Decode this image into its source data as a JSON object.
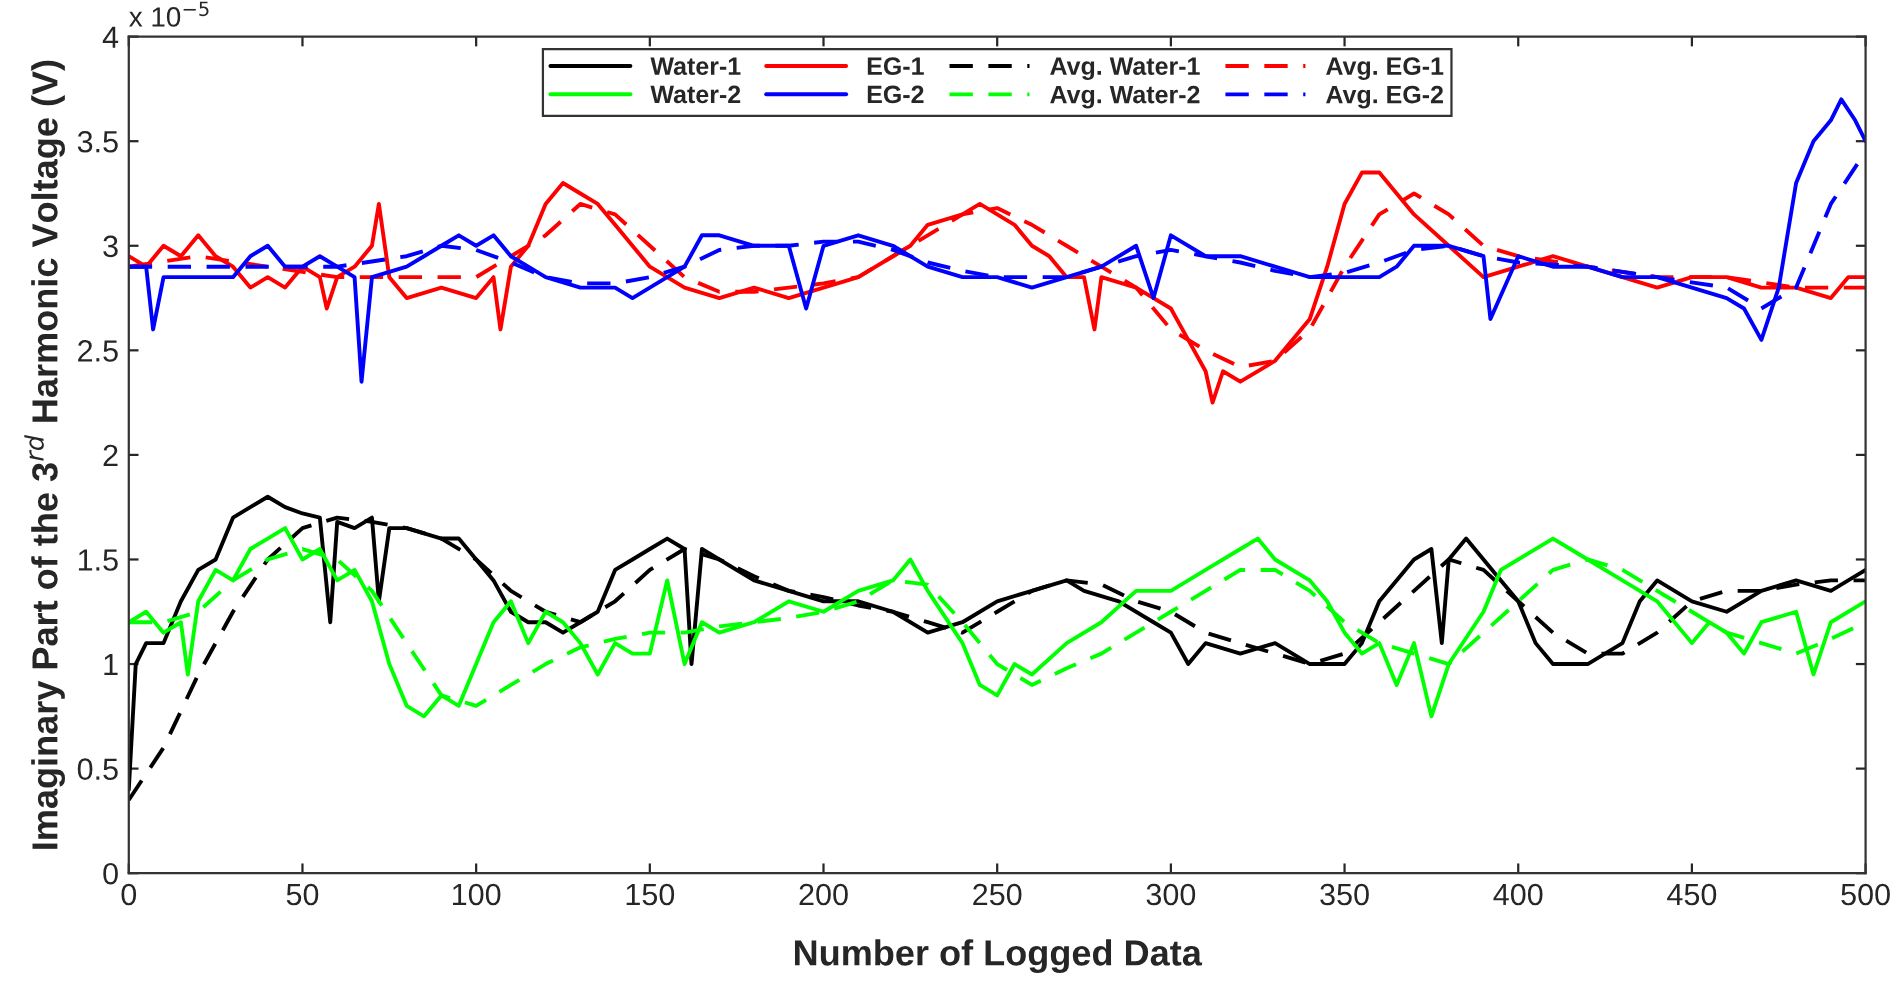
{
  "chart_data": {
    "type": "line",
    "xlabel": "Number of Logged Data",
    "ylabel": "Imaginary Part of the 3$^{rd}$ Harmonic Voltage (V)",
    "annotations": [
      "x 10$^{−5}$"
    ],
    "xlim": [
      0,
      500
    ],
    "xticks": [
      0,
      50,
      100,
      150,
      200,
      250,
      300,
      350,
      400,
      450,
      500
    ],
    "ylim": [
      0,
      4
    ],
    "yticks": [
      0,
      0.5,
      1,
      1.5,
      2,
      2.5,
      3,
      3.5,
      4
    ],
    "grid": false,
    "legend": "top",
    "marker": "none",
    "series": [
      {
        "name": "Water-1",
        "color": "#000000",
        "line_style": "solid",
        "x": [
          0,
          2,
          5,
          10,
          15,
          20,
          25,
          30,
          35,
          40,
          45,
          50,
          55,
          58,
          60,
          65,
          70,
          72,
          75,
          80,
          90,
          95,
          100,
          105,
          110,
          115,
          120,
          125,
          130,
          135,
          140,
          145,
          150,
          155,
          160,
          162,
          165,
          170,
          180,
          190,
          200,
          210,
          220,
          230,
          240,
          250,
          260,
          270,
          275,
          285,
          295,
          300,
          305,
          310,
          320,
          330,
          340,
          350,
          355,
          360,
          370,
          375,
          378,
          380,
          385,
          390,
          395,
          400,
          405,
          410,
          420,
          425,
          430,
          435,
          440,
          445,
          450,
          460,
          470,
          480,
          490,
          495,
          500
        ],
        "values": [
          0.4,
          1.0,
          1.1,
          1.1,
          1.3,
          1.45,
          1.5,
          1.7,
          1.75,
          1.8,
          1.75,
          1.72,
          1.7,
          1.2,
          1.68,
          1.65,
          1.7,
          1.3,
          1.65,
          1.65,
          1.6,
          1.6,
          1.5,
          1.4,
          1.25,
          1.2,
          1.2,
          1.15,
          1.2,
          1.25,
          1.45,
          1.5,
          1.55,
          1.6,
          1.55,
          1.0,
          1.55,
          1.5,
          1.4,
          1.35,
          1.3,
          1.3,
          1.25,
          1.15,
          1.2,
          1.3,
          1.35,
          1.4,
          1.35,
          1.3,
          1.2,
          1.15,
          1.0,
          1.1,
          1.05,
          1.1,
          1.0,
          1.0,
          1.1,
          1.3,
          1.5,
          1.55,
          1.1,
          1.5,
          1.6,
          1.5,
          1.4,
          1.3,
          1.1,
          1.0,
          1.0,
          1.05,
          1.1,
          1.3,
          1.4,
          1.35,
          1.3,
          1.25,
          1.35,
          1.4,
          1.35,
          1.4,
          1.45
        ]
      },
      {
        "name": "EG-1",
        "color": "#ff0000",
        "line_style": "solid",
        "x": [
          0,
          5,
          10,
          15,
          20,
          25,
          30,
          35,
          40,
          45,
          50,
          55,
          57,
          60,
          65,
          70,
          72,
          75,
          80,
          90,
          100,
          105,
          107,
          110,
          115,
          120,
          125,
          130,
          135,
          140,
          145,
          150,
          155,
          160,
          170,
          180,
          190,
          200,
          210,
          220,
          225,
          230,
          240,
          245,
          250,
          255,
          260,
          265,
          270,
          275,
          278,
          280,
          290,
          300,
          305,
          310,
          312,
          315,
          320,
          330,
          340,
          345,
          350,
          355,
          360,
          365,
          370,
          380,
          390,
          400,
          410,
          420,
          430,
          440,
          450,
          460,
          470,
          480,
          490,
          495,
          500
        ],
        "values": [
          2.95,
          2.9,
          3.0,
          2.95,
          3.05,
          2.95,
          2.9,
          2.8,
          2.85,
          2.8,
          2.9,
          2.85,
          2.7,
          2.85,
          2.9,
          3.0,
          3.2,
          2.85,
          2.75,
          2.8,
          2.75,
          2.85,
          2.6,
          2.9,
          3.0,
          3.2,
          3.3,
          3.25,
          3.2,
          3.1,
          3.0,
          2.9,
          2.85,
          2.8,
          2.75,
          2.8,
          2.75,
          2.8,
          2.85,
          2.95,
          3.0,
          3.1,
          3.15,
          3.2,
          3.15,
          3.1,
          3.0,
          2.95,
          2.85,
          2.85,
          2.6,
          2.85,
          2.8,
          2.7,
          2.55,
          2.4,
          2.25,
          2.4,
          2.35,
          2.45,
          2.65,
          2.9,
          3.2,
          3.35,
          3.35,
          3.25,
          3.15,
          3.0,
          2.85,
          2.9,
          2.95,
          2.9,
          2.85,
          2.8,
          2.85,
          2.85,
          2.8,
          2.8,
          2.75,
          2.85,
          2.85
        ]
      },
      {
        "name": "Avg. Water-1",
        "color": "#000000",
        "line_style": "dashed",
        "x": [
          0,
          10,
          20,
          30,
          40,
          50,
          60,
          70,
          80,
          90,
          100,
          110,
          120,
          130,
          140,
          150,
          160,
          170,
          180,
          190,
          200,
          210,
          220,
          230,
          240,
          250,
          260,
          270,
          280,
          290,
          300,
          310,
          320,
          330,
          340,
          350,
          360,
          370,
          380,
          390,
          400,
          410,
          420,
          430,
          440,
          450,
          460,
          470,
          480,
          490,
          500
        ],
        "values": [
          0.35,
          0.6,
          0.95,
          1.25,
          1.5,
          1.65,
          1.7,
          1.68,
          1.65,
          1.6,
          1.5,
          1.35,
          1.25,
          1.2,
          1.3,
          1.45,
          1.55,
          1.5,
          1.42,
          1.35,
          1.32,
          1.28,
          1.25,
          1.2,
          1.15,
          1.25,
          1.35,
          1.4,
          1.38,
          1.3,
          1.25,
          1.15,
          1.1,
          1.05,
          1.0,
          1.05,
          1.2,
          1.35,
          1.5,
          1.45,
          1.3,
          1.15,
          1.05,
          1.05,
          1.15,
          1.3,
          1.35,
          1.35,
          1.38,
          1.4,
          1.4
        ]
      },
      {
        "name": "Avg. EG-1",
        "color": "#ff0000",
        "line_style": "dashed",
        "x": [
          0,
          20,
          40,
          60,
          80,
          100,
          110,
          120,
          130,
          140,
          150,
          160,
          170,
          180,
          190,
          200,
          210,
          220,
          230,
          240,
          250,
          260,
          270,
          280,
          290,
          300,
          310,
          320,
          330,
          340,
          350,
          360,
          370,
          380,
          390,
          400,
          420,
          440,
          460,
          480,
          500
        ],
        "values": [
          2.9,
          2.95,
          2.9,
          2.85,
          2.85,
          2.85,
          2.95,
          3.05,
          3.2,
          3.15,
          3.0,
          2.85,
          2.78,
          2.78,
          2.8,
          2.82,
          2.85,
          2.95,
          3.05,
          3.15,
          3.18,
          3.1,
          3.0,
          2.9,
          2.8,
          2.6,
          2.5,
          2.42,
          2.45,
          2.6,
          2.9,
          3.15,
          3.25,
          3.15,
          3.0,
          2.95,
          2.9,
          2.85,
          2.85,
          2.8,
          2.8
        ]
      },
      {
        "name": "Water-2",
        "color": "#00ff00",
        "line_style": "solid",
        "x": [
          0,
          5,
          10,
          15,
          17,
          20,
          25,
          30,
          35,
          40,
          45,
          50,
          55,
          60,
          65,
          70,
          75,
          80,
          85,
          90,
          95,
          100,
          105,
          110,
          115,
          120,
          125,
          130,
          135,
          140,
          145,
          150,
          155,
          160,
          165,
          170,
          180,
          190,
          200,
          210,
          220,
          225,
          230,
          240,
          245,
          250,
          255,
          260,
          270,
          280,
          290,
          300,
          310,
          320,
          325,
          330,
          340,
          345,
          350,
          355,
          360,
          365,
          370,
          375,
          380,
          390,
          395,
          400,
          410,
          415,
          420,
          430,
          440,
          450,
          455,
          460,
          465,
          470,
          480,
          485,
          490,
          500
        ],
        "values": [
          1.2,
          1.25,
          1.15,
          1.2,
          0.95,
          1.3,
          1.45,
          1.4,
          1.55,
          1.6,
          1.65,
          1.5,
          1.55,
          1.4,
          1.45,
          1.3,
          1.0,
          0.8,
          0.75,
          0.85,
          0.8,
          1.0,
          1.2,
          1.3,
          1.1,
          1.25,
          1.2,
          1.1,
          0.95,
          1.1,
          1.05,
          1.05,
          1.4,
          1.0,
          1.2,
          1.15,
          1.2,
          1.3,
          1.25,
          1.35,
          1.4,
          1.5,
          1.35,
          1.1,
          0.9,
          0.85,
          1.0,
          0.95,
          1.1,
          1.2,
          1.35,
          1.35,
          1.45,
          1.55,
          1.6,
          1.5,
          1.4,
          1.3,
          1.15,
          1.05,
          1.1,
          0.9,
          1.1,
          0.75,
          1.0,
          1.25,
          1.45,
          1.5,
          1.6,
          1.55,
          1.5,
          1.4,
          1.3,
          1.1,
          1.2,
          1.15,
          1.05,
          1.2,
          1.25,
          0.95,
          1.2,
          1.3
        ]
      },
      {
        "name": "EG-2",
        "color": "#0000ff",
        "line_style": "solid",
        "x": [
          0,
          5,
          7,
          10,
          20,
          30,
          35,
          40,
          45,
          50,
          55,
          60,
          65,
          67,
          70,
          80,
          85,
          90,
          95,
          100,
          105,
          110,
          115,
          120,
          130,
          140,
          145,
          150,
          160,
          165,
          170,
          180,
          190,
          195,
          200,
          210,
          220,
          230,
          240,
          250,
          260,
          270,
          280,
          290,
          295,
          300,
          310,
          320,
          330,
          340,
          350,
          360,
          365,
          370,
          380,
          390,
          392,
          400,
          410,
          420,
          430,
          440,
          450,
          460,
          465,
          470,
          475,
          480,
          485,
          490,
          493,
          497,
          500
        ],
        "values": [
          2.9,
          2.9,
          2.6,
          2.85,
          2.85,
          2.85,
          2.95,
          3.0,
          2.9,
          2.9,
          2.95,
          2.9,
          2.85,
          2.35,
          2.85,
          2.9,
          2.95,
          3.0,
          3.05,
          3.0,
          3.05,
          2.95,
          2.9,
          2.85,
          2.8,
          2.8,
          2.75,
          2.8,
          2.9,
          3.05,
          3.05,
          3.0,
          3.0,
          2.7,
          3.0,
          3.05,
          3.0,
          2.9,
          2.85,
          2.85,
          2.8,
          2.85,
          2.9,
          3.0,
          2.75,
          3.05,
          2.95,
          2.95,
          2.9,
          2.85,
          2.85,
          2.85,
          2.9,
          3.0,
          3.0,
          2.95,
          2.65,
          2.95,
          2.9,
          2.9,
          2.85,
          2.85,
          2.8,
          2.75,
          2.7,
          2.55,
          2.8,
          3.3,
          3.5,
          3.6,
          3.7,
          3.6,
          3.5
        ]
      },
      {
        "name": "Avg. Water-2",
        "color": "#00ff00",
        "line_style": "dashed",
        "x": [
          0,
          10,
          20,
          30,
          40,
          50,
          60,
          70,
          80,
          90,
          100,
          110,
          120,
          130,
          140,
          150,
          160,
          170,
          180,
          190,
          200,
          210,
          220,
          230,
          240,
          250,
          260,
          270,
          280,
          290,
          300,
          310,
          320,
          330,
          340,
          350,
          360,
          370,
          380,
          390,
          400,
          410,
          420,
          430,
          440,
          450,
          460,
          470,
          480,
          490,
          500
        ],
        "values": [
          1.2,
          1.2,
          1.25,
          1.4,
          1.5,
          1.55,
          1.5,
          1.35,
          1.1,
          0.85,
          0.8,
          0.9,
          1.0,
          1.08,
          1.12,
          1.15,
          1.15,
          1.18,
          1.2,
          1.22,
          1.25,
          1.3,
          1.4,
          1.38,
          1.2,
          1.0,
          0.9,
          0.98,
          1.05,
          1.15,
          1.25,
          1.35,
          1.45,
          1.45,
          1.35,
          1.2,
          1.1,
          1.05,
          1.0,
          1.15,
          1.3,
          1.45,
          1.5,
          1.45,
          1.35,
          1.25,
          1.15,
          1.1,
          1.05,
          1.12,
          1.2
        ]
      },
      {
        "name": "Avg. EG-2",
        "color": "#0000ff",
        "line_style": "dashed",
        "x": [
          0,
          20,
          40,
          60,
          80,
          90,
          100,
          110,
          120,
          130,
          140,
          150,
          160,
          170,
          180,
          190,
          200,
          210,
          220,
          230,
          240,
          250,
          260,
          270,
          280,
          290,
          300,
          310,
          320,
          330,
          340,
          350,
          360,
          370,
          380,
          390,
          400,
          420,
          440,
          460,
          470,
          480,
          490,
          500
        ],
        "values": [
          2.9,
          2.9,
          2.9,
          2.9,
          2.95,
          3.0,
          2.98,
          2.92,
          2.85,
          2.82,
          2.82,
          2.85,
          2.9,
          2.98,
          3.0,
          3.0,
          3.02,
          3.02,
          2.98,
          2.92,
          2.88,
          2.85,
          2.85,
          2.85,
          2.9,
          2.95,
          2.98,
          2.95,
          2.92,
          2.88,
          2.85,
          2.87,
          2.92,
          2.98,
          3.0,
          2.95,
          2.92,
          2.9,
          2.85,
          2.8,
          2.7,
          2.8,
          3.2,
          3.45
        ]
      }
    ]
  }
}
